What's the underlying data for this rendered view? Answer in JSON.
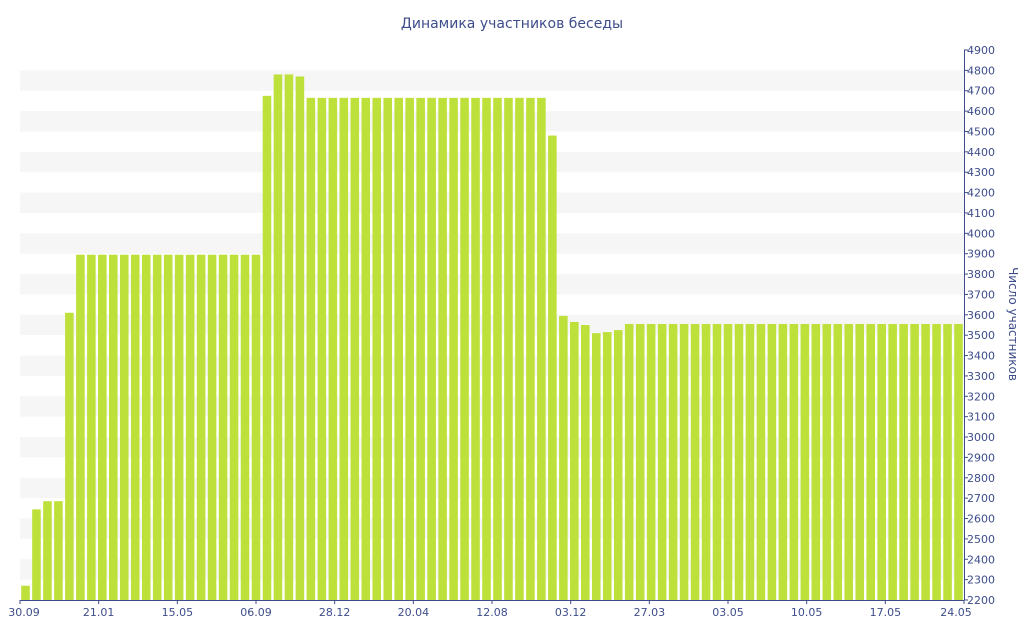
{
  "chart_data": {
    "type": "bar",
    "title": "Динамика участников беседы",
    "xlabel": "",
    "ylabel": "Число участников",
    "ylim": [
      2200,
      4900
    ],
    "y_ticks": [
      2200,
      2300,
      2400,
      2500,
      2600,
      2700,
      2800,
      2900,
      3000,
      3100,
      3200,
      3300,
      3400,
      3500,
      3600,
      3700,
      3800,
      3900,
      4000,
      4100,
      4200,
      4300,
      4400,
      4500,
      4600,
      4700,
      4800,
      4900
    ],
    "x_ticks": [
      "30.09",
      "21.01",
      "15.05",
      "06.09",
      "28.12",
      "20.04",
      "12.08",
      "03.12",
      "27.03",
      "03.05",
      "10.05",
      "17.05",
      "24.05"
    ],
    "grid": "horizontal bands",
    "bar_color": "#bde03a",
    "band_color": "#f6f6f6",
    "text_color": "#3d4d8a",
    "values": [
      2270,
      2645,
      2685,
      2685,
      3610,
      3895,
      3895,
      3895,
      3895,
      3895,
      3895,
      3895,
      3895,
      3895,
      3895,
      3895,
      3895,
      3895,
      3895,
      3895,
      3895,
      3895,
      4675,
      4780,
      4780,
      4770,
      4665,
      4665,
      4665,
      4665,
      4665,
      4665,
      4665,
      4665,
      4665,
      4665,
      4665,
      4665,
      4665,
      4665,
      4665,
      4665,
      4665,
      4665,
      4665,
      4665,
      4665,
      4665,
      4480,
      3595,
      3565,
      3550,
      3510,
      3515,
      3525,
      3555,
      3555,
      3555,
      3555,
      3555,
      3555,
      3555,
      3555,
      3555,
      3555,
      3555,
      3555,
      3555,
      3555,
      3555,
      3555,
      3555,
      3555,
      3555,
      3555,
      3555,
      3555,
      3555,
      3555,
      3555,
      3555,
      3555,
      3555,
      3555,
      3555,
      3555
    ]
  }
}
